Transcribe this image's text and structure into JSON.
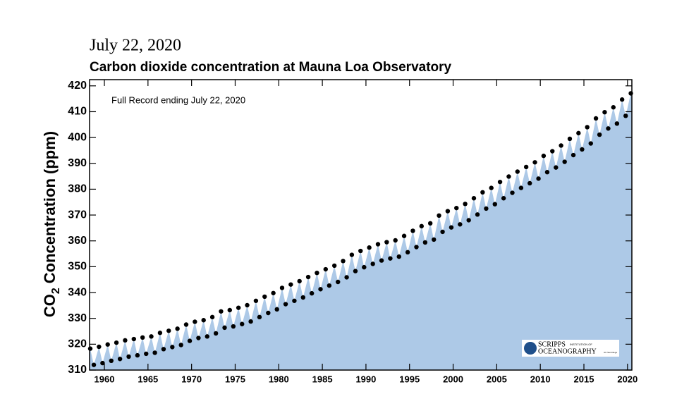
{
  "chart_data": {
    "type": "scatter",
    "date": "July 22, 2020",
    "title": "Carbon dioxide concentration at Mauna Loa Observatory",
    "annotation": "Full Record ending July 22, 2020",
    "ylabel": {
      "main": "CO",
      "sub": "2",
      "rest": "Concentration (ppm)"
    },
    "logo": {
      "name": "SCRIPPS",
      "small": "INSTITUTION OF",
      "line2": "OCEANOGRAPHY",
      "tag": "UC San Diego"
    },
    "marker_color": "#000000",
    "fill_color": "#adc9e7",
    "xlim": [
      1958.3,
      2020.5
    ],
    "ylim": [
      310,
      422.4
    ],
    "xticks": [
      1960,
      1965,
      1970,
      1975,
      1980,
      1985,
      1990,
      1995,
      2000,
      2005,
      2010,
      2015,
      2020
    ],
    "yticks": [
      310,
      320,
      330,
      340,
      350,
      360,
      370,
      380,
      390,
      400,
      410,
      420
    ],
    "x": [
      1958.38,
      1958.79,
      1959.38,
      1959.79,
      1960.38,
      1960.79,
      1961.38,
      1961.79,
      1962.38,
      1962.79,
      1963.38,
      1963.79,
      1964.38,
      1964.79,
      1965.38,
      1965.79,
      1966.38,
      1966.79,
      1967.38,
      1967.79,
      1968.38,
      1968.79,
      1969.38,
      1969.79,
      1970.38,
      1970.79,
      1971.38,
      1971.79,
      1972.38,
      1972.79,
      1973.38,
      1973.79,
      1974.38,
      1974.79,
      1975.38,
      1975.79,
      1976.38,
      1976.79,
      1977.38,
      1977.79,
      1978.38,
      1978.79,
      1979.38,
      1979.79,
      1980.38,
      1980.79,
      1981.38,
      1981.79,
      1982.38,
      1982.79,
      1983.38,
      1983.79,
      1984.38,
      1984.79,
      1985.38,
      1985.79,
      1986.38,
      1986.79,
      1987.38,
      1987.79,
      1988.38,
      1988.79,
      1989.38,
      1989.79,
      1990.38,
      1990.79,
      1991.38,
      1991.79,
      1992.38,
      1992.79,
      1993.38,
      1993.79,
      1994.38,
      1994.79,
      1995.38,
      1995.79,
      1996.38,
      1996.79,
      1997.38,
      1997.79,
      1998.38,
      1998.79,
      1999.38,
      1999.79,
      2000.38,
      2000.79,
      2001.38,
      2001.79,
      2002.38,
      2002.79,
      2003.38,
      2003.79,
      2004.38,
      2004.79,
      2005.38,
      2005.79,
      2006.38,
      2006.79,
      2007.38,
      2007.79,
      2008.38,
      2008.79,
      2009.38,
      2009.79,
      2010.38,
      2010.79,
      2011.38,
      2011.79,
      2012.38,
      2012.79,
      2013.38,
      2013.79,
      2014.38,
      2014.79,
      2015.38,
      2015.79,
      2016.38,
      2016.79,
      2017.38,
      2017.79,
      2018.38,
      2018.79,
      2019.38,
      2019.79,
      2020.38
    ],
    "values": [
      318.3,
      312.0,
      319.0,
      312.7,
      319.9,
      313.6,
      320.6,
      314.3,
      321.5,
      315.2,
      322.0,
      315.7,
      322.6,
      316.3,
      323.0,
      316.7,
      324.4,
      318.1,
      325.2,
      318.9,
      326.0,
      319.7,
      327.6,
      321.3,
      328.7,
      322.4,
      329.3,
      323.0,
      330.5,
      324.2,
      332.7,
      326.4,
      333.2,
      326.9,
      334.1,
      327.8,
      335.1,
      328.8,
      336.8,
      330.5,
      338.4,
      332.1,
      339.8,
      333.5,
      341.8,
      335.5,
      343.1,
      336.8,
      344.4,
      338.1,
      346.0,
      339.7,
      347.6,
      341.3,
      349.0,
      342.7,
      350.4,
      344.1,
      352.2,
      345.9,
      354.6,
      348.3,
      356.1,
      349.8,
      357.4,
      351.1,
      358.7,
      352.4,
      359.5,
      353.2,
      360.2,
      353.9,
      361.9,
      355.6,
      363.9,
      357.6,
      365.7,
      359.4,
      366.8,
      360.5,
      369.8,
      363.5,
      371.5,
      365.2,
      372.7,
      366.4,
      374.3,
      368.0,
      376.5,
      370.2,
      378.8,
      372.5,
      380.5,
      374.2,
      382.8,
      376.5,
      384.9,
      378.6,
      386.8,
      380.5,
      388.6,
      382.3,
      390.4,
      384.1,
      392.9,
      386.6,
      394.7,
      388.4,
      396.9,
      390.6,
      399.5,
      393.2,
      401.7,
      395.4,
      404.0,
      397.7,
      407.4,
      401.1,
      409.8,
      403.5,
      411.7,
      405.4,
      414.7,
      408.4,
      417.1
    ]
  }
}
